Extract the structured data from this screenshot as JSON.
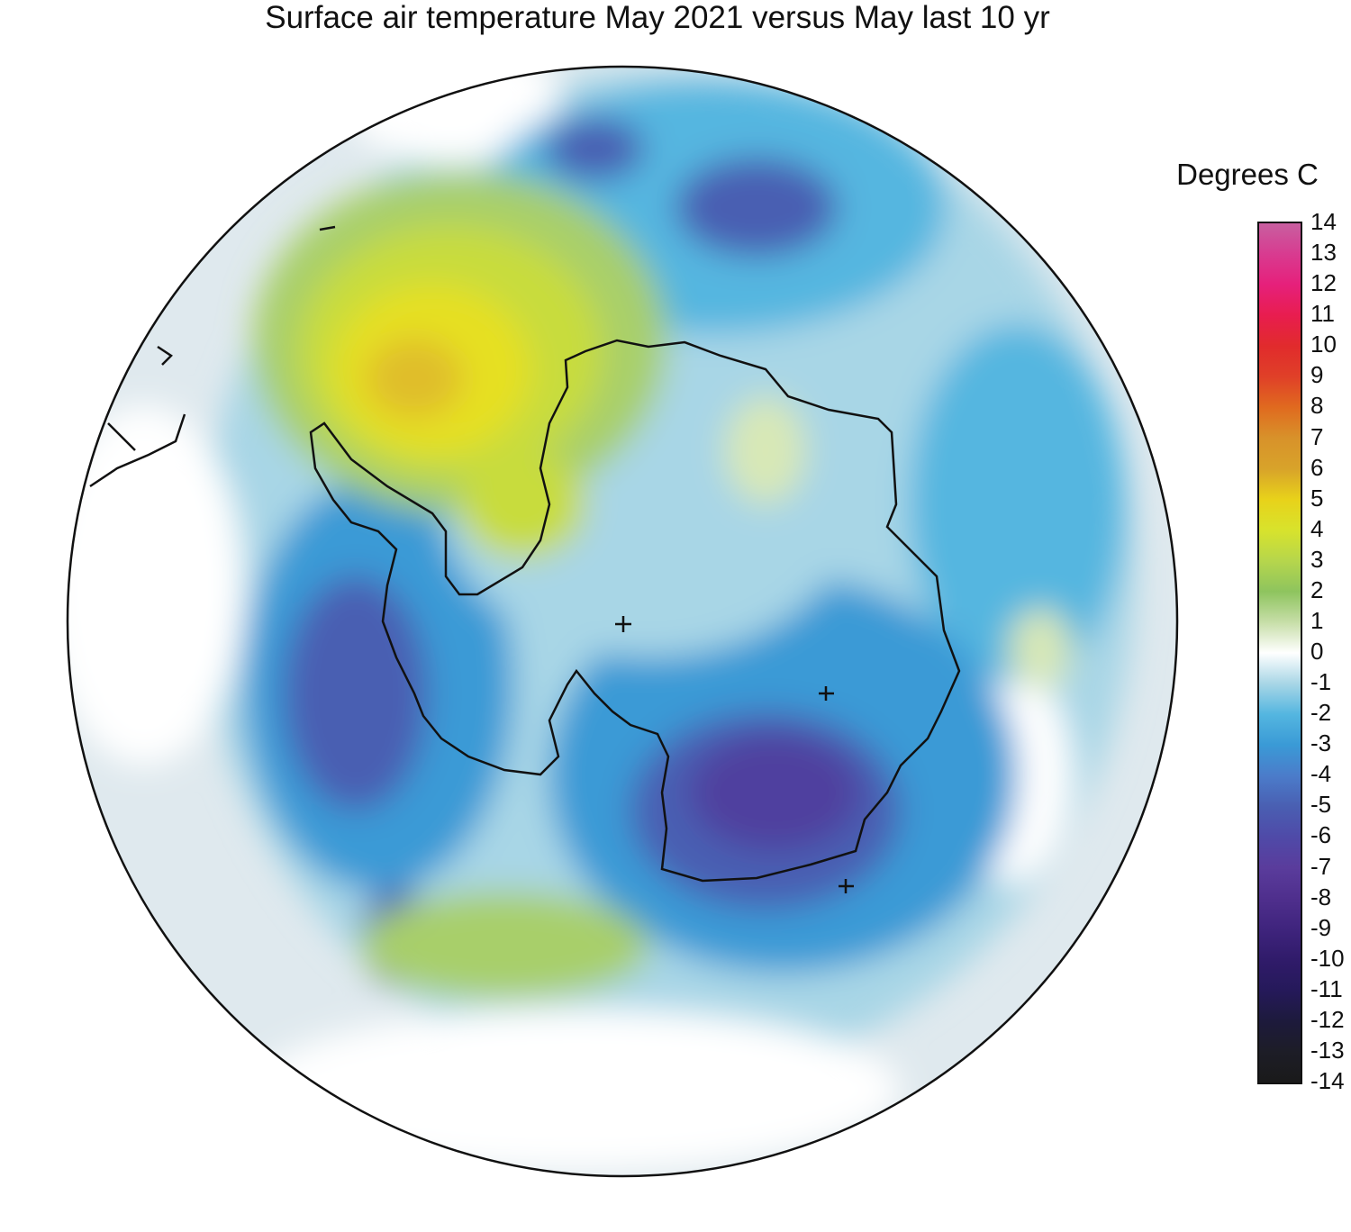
{
  "title": "Surface air temperature May 2021 versus May last 10 yr",
  "legend": {
    "title": "Degrees C",
    "ticks": [
      "14",
      "13",
      "12",
      "11",
      "10",
      "9",
      "8",
      "7",
      "6",
      "5",
      "4",
      "3",
      "2",
      "1",
      "0",
      "-1",
      "-2",
      "-3",
      "-4",
      "-5",
      "-6",
      "-7",
      "-8",
      "-9",
      "-10",
      "-11",
      "-12",
      "-13",
      "-14"
    ],
    "colors": [
      "#c85fa0",
      "#d83b90",
      "#e6207b",
      "#e81d4f",
      "#e12b2c",
      "#e04028",
      "#e06a1f",
      "#d8922a",
      "#d8a32a",
      "#e8d21a",
      "#d8e32c",
      "#b6d64c",
      "#8ec45e",
      "#c7dea8",
      "#ffffff",
      "#a8d6e6",
      "#54b6e0",
      "#3a9ad6",
      "#4b7cca",
      "#4a5fb2",
      "#4f4aa8",
      "#5a3c9c",
      "#4f2f8d",
      "#3f247d",
      "#301b6a",
      "#25195a",
      "#1d1a3c",
      "#1d1d27",
      "#1a1a1a"
    ]
  },
  "map": {
    "colors": {
      "ocean_base": "#dfe9ee",
      "zero": "#ffffff",
      "cold1": "#a8d6e6",
      "cold2": "#54b6e0",
      "cold3": "#3a9ad6",
      "cold5": "#4a5fb2",
      "cold7": "#4f3f9f",
      "warm1": "#d8e8b6",
      "warm2": "#a8cf6a",
      "warm3": "#c8dc3c",
      "warm4": "#e6e022",
      "warm5": "#e0be2a",
      "warm6": "#c9963a",
      "coast": "#111111"
    }
  }
}
